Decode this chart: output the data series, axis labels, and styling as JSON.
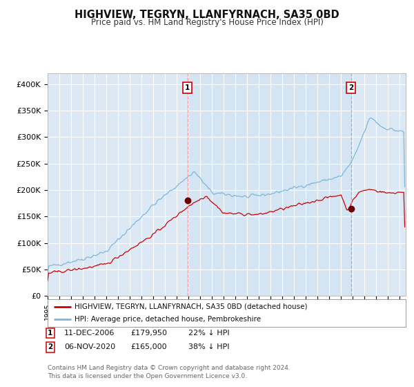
{
  "title": "HIGHVIEW, TEGRYN, LLANFYRNACH, SA35 0BD",
  "subtitle": "Price paid vs. HM Land Registry's House Price Index (HPI)",
  "background_color": "#dce9f5",
  "outer_bg_color": "#ffffff",
  "hpi_color": "#7ab8d9",
  "price_color": "#cc0000",
  "ylim": [
    0,
    420000
  ],
  "yticks": [
    0,
    50000,
    100000,
    150000,
    200000,
    250000,
    300000,
    350000,
    400000
  ],
  "ytick_labels": [
    "£0",
    "£50K",
    "£100K",
    "£150K",
    "£200K",
    "£250K",
    "£300K",
    "£350K",
    "£400K"
  ],
  "transaction1_date_num": 2006.917,
  "transaction1_price": 179950,
  "transaction2_date_num": 2020.833,
  "transaction2_price": 165000,
  "legend_label_red": "HIGHVIEW, TEGRYN, LLANFYRNACH, SA35 0BD (detached house)",
  "legend_label_blue": "HPI: Average price, detached house, Pembrokeshire",
  "copyright": "Contains HM Land Registry data © Crown copyright and database right 2024.\nThis data is licensed under the Open Government Licence v3.0.",
  "xmin": 1995.0,
  "xmax": 2025.5
}
